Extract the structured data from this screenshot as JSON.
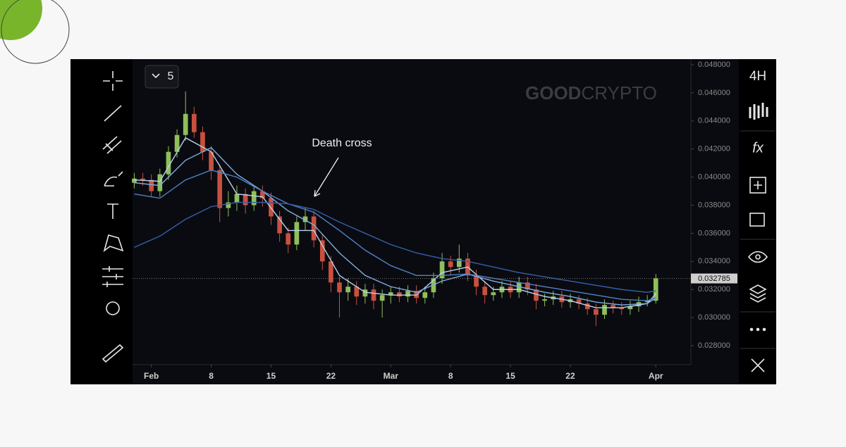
{
  "toolbar": {
    "interval_count": "5",
    "interval": "4H",
    "indicators": "fx"
  },
  "watermark": {
    "bold": "GOOD",
    "light": "CRYPTO"
  },
  "chart_data": {
    "type": "candlestick",
    "annotation": "Death cross",
    "up_color": "#8fbf5a",
    "down_color": "#c9503f",
    "xlim": [
      -2.2,
      63.1
    ],
    "ylim": [
      0.02665,
      0.04835
    ],
    "xticks": [
      {
        "value": 0,
        "label": "Feb"
      },
      {
        "value": 7,
        "label": "8"
      },
      {
        "value": 14,
        "label": "15"
      },
      {
        "value": 21,
        "label": "22"
      },
      {
        "value": 28,
        "label": "Mar"
      },
      {
        "value": 35,
        "label": "8"
      },
      {
        "value": 42,
        "label": "15"
      },
      {
        "value": 49,
        "label": "22"
      },
      {
        "value": 59,
        "label": "Apr"
      }
    ],
    "yticks": [
      {
        "value": 0.028,
        "label": "0.028000"
      },
      {
        "value": 0.03,
        "label": "0.030000"
      },
      {
        "value": 0.032,
        "label": "0.032000"
      },
      {
        "value": 0.034,
        "label": "0.034000"
      },
      {
        "value": 0.036,
        "label": "0.036000"
      },
      {
        "value": 0.038,
        "label": "0.038000"
      },
      {
        "value": 0.04,
        "label": "0.040000"
      },
      {
        "value": 0.042,
        "label": "0.042000"
      },
      {
        "value": 0.044,
        "label": "0.044000"
      },
      {
        "value": 0.046,
        "label": "0.046000"
      },
      {
        "value": 0.048,
        "label": "0.048000"
      }
    ],
    "last_price": {
      "value": 0.032785,
      "label": "0.032785"
    },
    "x": [
      -2,
      -1,
      0,
      1,
      2,
      3,
      4,
      5,
      6,
      7,
      8,
      9,
      10,
      11,
      12,
      13,
      14,
      15,
      16,
      17,
      18,
      19,
      20,
      21,
      22,
      23,
      24,
      25,
      26,
      27,
      28,
      29,
      30,
      31,
      32,
      33,
      34,
      35,
      36,
      37,
      38,
      39,
      40,
      41,
      42,
      43,
      44,
      45,
      46,
      47,
      48,
      49,
      50,
      51,
      52,
      53,
      54,
      55,
      56,
      57,
      58,
      59
    ],
    "open": [
      0.0396,
      0.0399,
      0.0398,
      0.039,
      0.0402,
      0.0418,
      0.043,
      0.0445,
      0.0432,
      0.0418,
      0.0405,
      0.0378,
      0.0382,
      0.0388,
      0.038,
      0.039,
      0.0385,
      0.0372,
      0.036,
      0.0352,
      0.0368,
      0.0372,
      0.0355,
      0.034,
      0.0325,
      0.0318,
      0.0322,
      0.0315,
      0.032,
      0.0312,
      0.0316,
      0.0318,
      0.0315,
      0.0319,
      0.0314,
      0.0318,
      0.0328,
      0.034,
      0.0336,
      0.0342,
      0.033,
      0.0322,
      0.0316,
      0.0318,
      0.0322,
      0.0318,
      0.0325,
      0.032,
      0.0312,
      0.0313,
      0.0315,
      0.0311,
      0.0313,
      0.031,
      0.0306,
      0.0302,
      0.0309,
      0.0307,
      0.0306,
      0.0308,
      0.0311,
      0.0312
    ],
    "high": [
      0.0403,
      0.0403,
      0.0402,
      0.0406,
      0.0422,
      0.0434,
      0.0461,
      0.045,
      0.0436,
      0.0422,
      0.0409,
      0.039,
      0.0394,
      0.0392,
      0.0394,
      0.0394,
      0.0389,
      0.0376,
      0.0364,
      0.0372,
      0.0378,
      0.0376,
      0.0359,
      0.0344,
      0.0329,
      0.0328,
      0.0326,
      0.0324,
      0.0324,
      0.032,
      0.0322,
      0.0322,
      0.0323,
      0.0323,
      0.0322,
      0.0332,
      0.0346,
      0.0344,
      0.0352,
      0.0346,
      0.0334,
      0.0326,
      0.0322,
      0.0326,
      0.0326,
      0.0329,
      0.0329,
      0.0324,
      0.0317,
      0.0319,
      0.0319,
      0.0317,
      0.0316,
      0.0314,
      0.031,
      0.0313,
      0.0312,
      0.0311,
      0.0312,
      0.0315,
      0.0316,
      0.0331
    ],
    "low": [
      0.0392,
      0.0394,
      0.0386,
      0.0386,
      0.0398,
      0.0414,
      0.0426,
      0.0428,
      0.0412,
      0.0398,
      0.0368,
      0.0372,
      0.0376,
      0.0374,
      0.0376,
      0.0379,
      0.0366,
      0.0354,
      0.0346,
      0.0348,
      0.0362,
      0.035,
      0.0334,
      0.0318,
      0.03,
      0.0312,
      0.0309,
      0.031,
      0.0306,
      0.03,
      0.031,
      0.0311,
      0.0311,
      0.031,
      0.031,
      0.0314,
      0.0324,
      0.033,
      0.0332,
      0.0326,
      0.0316,
      0.031,
      0.0312,
      0.0314,
      0.0314,
      0.0314,
      0.0316,
      0.0306,
      0.0308,
      0.0309,
      0.0307,
      0.0307,
      0.0306,
      0.0302,
      0.0294,
      0.0299,
      0.0303,
      0.0302,
      0.0302,
      0.0304,
      0.0308,
      0.031
    ],
    "close": [
      0.0399,
      0.0398,
      0.039,
      0.0402,
      0.0418,
      0.043,
      0.0445,
      0.0432,
      0.0418,
      0.0405,
      0.0378,
      0.0382,
      0.0388,
      0.038,
      0.039,
      0.0385,
      0.0372,
      0.036,
      0.0352,
      0.0368,
      0.0372,
      0.0355,
      0.034,
      0.0325,
      0.0318,
      0.0322,
      0.0315,
      0.032,
      0.0312,
      0.0316,
      0.0318,
      0.0315,
      0.0319,
      0.0314,
      0.0318,
      0.0328,
      0.034,
      0.0336,
      0.0342,
      0.033,
      0.0322,
      0.0316,
      0.0318,
      0.0322,
      0.0318,
      0.0325,
      0.032,
      0.0312,
      0.0313,
      0.0315,
      0.0311,
      0.0313,
      0.031,
      0.0306,
      0.0302,
      0.0309,
      0.0307,
      0.0306,
      0.0308,
      0.0311,
      0.0312,
      0.0328
    ],
    "ma_x": [
      -2,
      1,
      4,
      7,
      10,
      13,
      16,
      19,
      22,
      25,
      28,
      31,
      34,
      37,
      40,
      43,
      46,
      49,
      52,
      55,
      58,
      59
    ],
    "moving_averages": [
      {
        "color": "#b7d3ee",
        "values": [
          0.0398,
          0.0397,
          0.0428,
          0.0418,
          0.0388,
          0.0386,
          0.0362,
          0.0362,
          0.033,
          0.0318,
          0.0316,
          0.0316,
          0.0332,
          0.0336,
          0.032,
          0.032,
          0.0315,
          0.0312,
          0.0307,
          0.0307,
          0.031,
          0.0317
        ]
      },
      {
        "color": "#7eaee0",
        "values": [
          0.0396,
          0.0394,
          0.0412,
          0.0421,
          0.0402,
          0.039,
          0.0376,
          0.0366,
          0.0346,
          0.033,
          0.0322,
          0.0318,
          0.0326,
          0.0331,
          0.0326,
          0.0322,
          0.0318,
          0.0315,
          0.0311,
          0.0309,
          0.031,
          0.0314
        ]
      },
      {
        "color": "#4f82c8",
        "values": [
          0.0388,
          0.0385,
          0.0398,
          0.0405,
          0.04,
          0.039,
          0.0381,
          0.0375,
          0.0362,
          0.0348,
          0.0337,
          0.033,
          0.033,
          0.0331,
          0.0328,
          0.0325,
          0.0322,
          0.0319,
          0.0316,
          0.0313,
          0.0312,
          0.0314
        ]
      },
      {
        "color": "#3560aa",
        "values": [
          0.035,
          0.0358,
          0.037,
          0.0379,
          0.0382,
          0.0382,
          0.0381,
          0.0377,
          0.0368,
          0.036,
          0.0352,
          0.0346,
          0.0342,
          0.034,
          0.0336,
          0.0332,
          0.0329,
          0.0326,
          0.0323,
          0.032,
          0.0318,
          0.0319
        ]
      }
    ]
  }
}
